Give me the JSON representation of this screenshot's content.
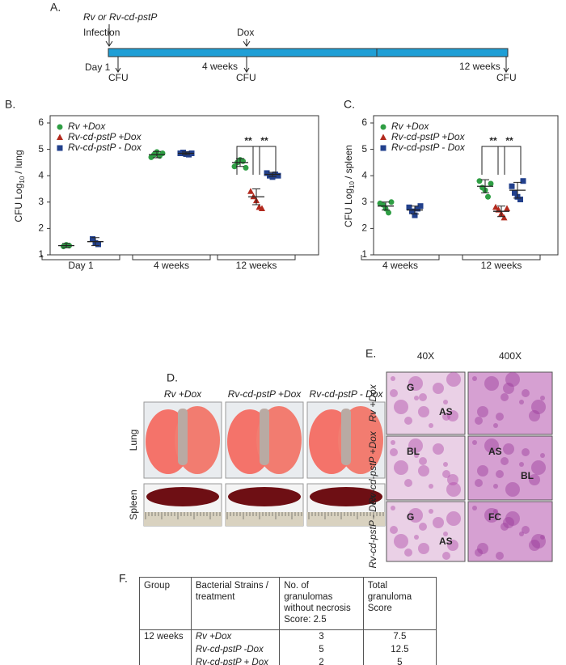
{
  "panel_labels": [
    "A.",
    "B.",
    "C.",
    "D.",
    "E.",
    "F."
  ],
  "timeline": {
    "strains": "Rv or Rv-cd-pstP",
    "infection": "Infection",
    "dox": "Dox",
    "points": [
      {
        "label": "Day 1",
        "note": "CFU"
      },
      {
        "label": "4 weeks",
        "note": "CFU"
      },
      {
        "label": "12 weeks",
        "note": "CFU"
      }
    ]
  },
  "chart_data": [
    {
      "type": "dot",
      "ylabel": {
        "main": "CFU Log",
        "sub": "10",
        "rest": "/ lung"
      },
      "categories": [
        "Day 1",
        "4 weeks",
        "12 weeks"
      ],
      "ylim": [
        1,
        6
      ],
      "yticks": [
        1,
        2,
        3,
        4,
        5,
        6
      ],
      "annotations": [
        "**",
        "**"
      ],
      "series": [
        {
          "name": "Rv +Dox",
          "color": "#2f9e44",
          "marker": "circle",
          "points": [
            [
              1.32,
              1.38,
              1.35
            ],
            [
              4.7,
              4.8,
              4.9,
              4.75,
              4.85
            ],
            [
              4.35,
              4.5,
              4.6,
              4.55,
              4.3
            ]
          ],
          "means": [
            1.35,
            4.8,
            4.5
          ],
          "errors": [
            0.08,
            0.12,
            0.15
          ]
        },
        {
          "name": "Rv-cd-pstP +Dox",
          "color": "#b22a1e",
          "marker": "triangle",
          "points": [
            null,
            null,
            [
              3.4,
              3.2,
              3.05,
              2.8,
              2.75
            ]
          ],
          "means": [
            null,
            null,
            3.2
          ],
          "errors": [
            null,
            null,
            0.3
          ]
        },
        {
          "name": "Rv-cd-pstP - Dox",
          "color": "#22408c",
          "marker": "square",
          "points": [
            [
              1.6,
              1.45,
              1.4
            ],
            [
              4.85,
              4.88,
              4.82,
              4.8,
              4.85
            ],
            [
              4.1,
              4.0,
              3.95,
              4.05,
              4.0
            ]
          ],
          "means": [
            1.5,
            4.85,
            4.05
          ],
          "errors": [
            0.15,
            0.05,
            0.08
          ]
        }
      ]
    },
    {
      "type": "dot",
      "ylabel": {
        "main": "CFU Log",
        "sub": "10",
        "rest": "/ spleen"
      },
      "categories": [
        "4 weeks",
        "12 weeks"
      ],
      "ylim": [
        1,
        6
      ],
      "yticks": [
        1,
        2,
        3,
        4,
        5,
        6
      ],
      "annotations": [
        "**",
        "**"
      ],
      "series": [
        {
          "name": "Rv +Dox",
          "color": "#2f9e44",
          "marker": "circle",
          "points": [
            [
              2.95,
              2.9,
              2.75,
              2.6,
              3.0
            ],
            [
              3.8,
              3.55,
              3.45,
              3.2,
              3.7
            ]
          ],
          "means": [
            2.85,
            3.6
          ],
          "errors": [
            0.15,
            0.25
          ]
        },
        {
          "name": "Rv-cd-pstP +Dox",
          "color": "#b22a1e",
          "marker": "triangle",
          "points": [
            null,
            [
              2.8,
              2.7,
              2.55,
              2.4,
              2.75
            ]
          ],
          "means": [
            null,
            2.65
          ],
          "errors": [
            null,
            0.2
          ]
        },
        {
          "name": "Rv-cd-pstP - Dox",
          "color": "#22408c",
          "marker": "square",
          "points": [
            [
              2.8,
              2.65,
              2.5,
              2.75,
              2.85
            ],
            [
              3.6,
              3.35,
              3.2,
              3.1,
              3.8
            ]
          ],
          "means": [
            2.7,
            3.45
          ],
          "errors": [
            0.15,
            0.3
          ]
        }
      ]
    }
  ],
  "photos": {
    "columns": [
      "Rv +Dox",
      "Rv-cd-pstP +Dox",
      "Rv-cd-pstP - Dox"
    ],
    "rows": [
      "Lung",
      "Spleen"
    ]
  },
  "histology": {
    "columns": [
      "40X",
      "400X"
    ],
    "rows": [
      "Rv +Dox",
      "Rv-cd-pstP +Dox",
      "Rv-cd-pstP - Dox"
    ],
    "labels": [
      [
        "G",
        "AS"
      ],
      [],
      [
        "BL"
      ],
      [
        "AS",
        "BL"
      ],
      [
        "G",
        "AS"
      ],
      [
        "FC"
      ]
    ]
  },
  "table": {
    "header": [
      "Group",
      "Bacterial Strains / treatment",
      "No. of granulomas without necrosis Score: 2.5",
      "Total granuloma Score"
    ],
    "rows": [
      [
        "12 weeks",
        "Rv +Dox",
        "3",
        "7.5"
      ],
      [
        null,
        "Rv-cd-pstP -Dox",
        "5",
        "12.5"
      ],
      [
        null,
        "Rv-cd-pstP + Dox",
        "2",
        "5"
      ]
    ]
  }
}
